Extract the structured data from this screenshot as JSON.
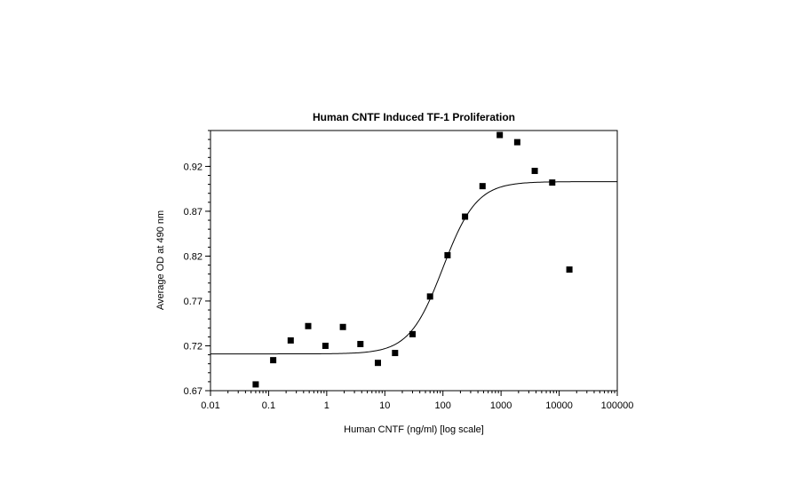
{
  "chart_data": {
    "type": "scatter",
    "title": "Human CNTF Induced TF-1 Proliferation",
    "xlabel": "Human CNTF (ng/ml) [log scale]",
    "ylabel": "Average OD at 490 nm",
    "xscale": "log",
    "xlim": [
      0.01,
      100000
    ],
    "ylim": [
      0.67,
      0.96
    ],
    "xticks": [
      "0.01",
      "0.1",
      "1",
      "10",
      "100",
      "1000",
      "10000",
      "100000"
    ],
    "yticks": [
      "0.67",
      "0.72",
      "0.77",
      "0.82",
      "0.87",
      "0.92"
    ],
    "grid": false,
    "points": {
      "x": [
        0.06,
        0.12,
        0.24,
        0.48,
        0.95,
        1.9,
        3.8,
        7.6,
        15,
        30,
        60,
        120,
        240,
        480,
        950,
        1900,
        3800,
        7600,
        15000
      ],
      "y": [
        0.677,
        0.704,
        0.726,
        0.742,
        0.72,
        0.741,
        0.722,
        0.701,
        0.712,
        0.733,
        0.775,
        0.821,
        0.864,
        0.898,
        0.955,
        0.947,
        0.915,
        0.902,
        0.805
      ]
    },
    "fit_curve": {
      "model": "4-parameter logistic",
      "bottom": 0.711,
      "top": 0.903,
      "ec50": 100,
      "hill": 1.5
    }
  }
}
